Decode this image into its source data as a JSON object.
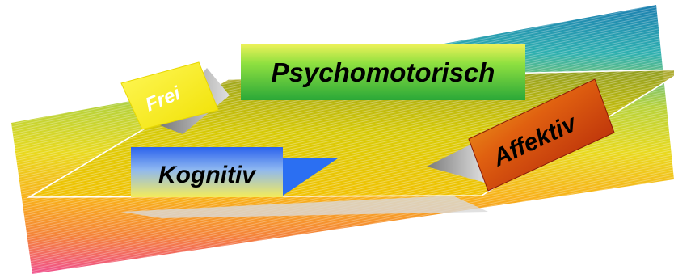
{
  "labels": {
    "free": "Frei",
    "psychomotor": "Psychomotorisch",
    "cognitive": "Kognitiv",
    "affective": "Affektiv"
  },
  "colors": {
    "band_top": "#1e8fb4",
    "band_mid": "#cfd13a",
    "band_low": "#f6a21a",
    "band_bottom": "#f05a86",
    "plane": "#c8b400",
    "free_box": "#fff200",
    "psycho_box": "#6bd63a",
    "cognitive_box_top": "#2b6ff2",
    "cognitive_box_bottom": "#f2e85a",
    "affective_box": "#d04010",
    "text": "#000000",
    "text_light": "#ffffff"
  }
}
